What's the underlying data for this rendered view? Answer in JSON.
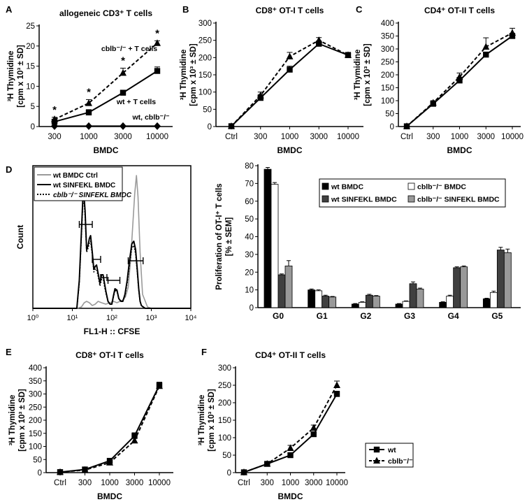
{
  "chart_data": [
    {
      "id": "A",
      "panel_label": "A",
      "type": "line",
      "title": "allogeneic CD3⁺ T cells",
      "xlabel": "BMDC",
      "ylabel": [
        "³H Thymidine",
        "[cpm x 10³ ± SD]"
      ],
      "categories": [
        "300",
        "1000",
        "3000",
        "10000"
      ],
      "ylim": [
        0,
        25
      ],
      "yticks": [
        0,
        5,
        10,
        15,
        20,
        25
      ],
      "series": [
        {
          "name": "cblb⁻/⁻ + T cells",
          "style": "dashed",
          "marker": "triangle",
          "values": [
            1.8,
            5.8,
            13.3,
            20.7
          ],
          "err": [
            0.5,
            0.9,
            1.2,
            0.6
          ]
        },
        {
          "name": "wt + T cells",
          "style": "solid",
          "marker": "square",
          "values": [
            1.2,
            3.5,
            8.4,
            13.8
          ],
          "err": [
            0.4,
            0.7,
            0.5,
            1.0
          ]
        },
        {
          "name": "wt, cblb⁻/⁻",
          "style": "solid",
          "marker": "diamond",
          "values": [
            0.1,
            0.1,
            0.1,
            0.1
          ],
          "err": [
            0,
            0,
            0,
            0
          ]
        }
      ],
      "annotations": [
        "*",
        "*",
        "*",
        "*"
      ]
    },
    {
      "id": "B",
      "panel_label": "B",
      "type": "line",
      "title": "CD8⁺ OT-I T cells",
      "xlabel": "BMDC",
      "ylabel": [
        "³H Thymidine",
        "[cpm x 10³ ± SD]"
      ],
      "categories": [
        "Ctrl",
        "300",
        "1000",
        "3000",
        "10000"
      ],
      "ylim": [
        0,
        300
      ],
      "yticks": [
        0,
        50,
        100,
        150,
        200,
        250,
        300
      ],
      "series": [
        {
          "name": "wt",
          "style": "solid",
          "marker": "square",
          "values": [
            1,
            83,
            165,
            240,
            207
          ],
          "err": [
            0,
            10,
            10,
            8,
            8
          ]
        },
        {
          "name": "cblb⁻/⁻",
          "style": "dashed",
          "marker": "triangle",
          "values": [
            1,
            90,
            203,
            250,
            207
          ],
          "err": [
            0,
            10,
            12,
            8,
            8
          ]
        }
      ]
    },
    {
      "id": "C",
      "panel_label": "C",
      "type": "line",
      "title": "CD4⁺ OT-II T cells",
      "xlabel": "BMDC",
      "ylabel": [
        "³H Thymidine",
        "[cpm x 10³ ± SD]"
      ],
      "categories": [
        "Ctrl",
        "300",
        "1000",
        "3000",
        "10000"
      ],
      "ylim": [
        0,
        400
      ],
      "yticks": [
        0,
        50,
        100,
        150,
        200,
        250,
        300,
        350,
        400
      ],
      "series": [
        {
          "name": "wt",
          "style": "solid",
          "marker": "square",
          "values": [
            1,
            88,
            178,
            278,
            350
          ],
          "err": [
            0,
            8,
            12,
            10,
            10
          ]
        },
        {
          "name": "cblb⁻/⁻",
          "style": "dashed",
          "marker": "triangle",
          "values": [
            1,
            92,
            192,
            308,
            362
          ],
          "err": [
            0,
            8,
            15,
            35,
            18
          ]
        }
      ]
    },
    {
      "id": "Dhist",
      "panel_label": "D",
      "type": "line",
      "title": "",
      "xlabel": "FL1-H :: CFSE",
      "ylabel": "Count",
      "xscale": "log",
      "xlim": [
        1,
        10000
      ],
      "xtick_values": [
        1,
        10,
        100,
        1000,
        10000
      ],
      "xticks": [
        "10⁰",
        "10¹",
        "10²",
        "10³",
        "10⁴"
      ],
      "ylim": [
        0,
        100
      ],
      "legend": [
        "wt BMDC Ctrl",
        "wt SINFEKL BMDC",
        "cblb⁻/⁻ SINFEKL BMDC"
      ],
      "series": [
        {
          "name": "wt BMDC Ctrl",
          "style": "gray",
          "x": [
            1,
            13,
            17,
            20,
            23,
            27,
            32,
            38,
            45,
            55,
            70,
            90,
            110,
            135,
            160,
            190,
            220,
            260,
            300,
            340,
            380,
            420,
            460,
            520,
            600,
            800,
            1000,
            10000
          ],
          "y": [
            0,
            0,
            1,
            4,
            5,
            4,
            2,
            3,
            5,
            4,
            3,
            4,
            5,
            4,
            5,
            6,
            8,
            15,
            35,
            60,
            82,
            95,
            80,
            40,
            10,
            1,
            0,
            0
          ]
        },
        {
          "name": "wt SINFEKL BMDC",
          "style": "solid",
          "x": [
            1,
            13,
            15,
            17,
            19,
            21,
            23,
            25,
            27,
            29,
            32,
            35,
            38,
            41,
            45,
            50,
            55,
            60,
            66,
            72,
            80,
            90,
            100,
            110,
            120,
            135,
            150,
            170,
            190,
            215,
            245,
            280,
            320,
            360,
            400,
            440,
            480,
            520,
            560,
            620,
            700,
            900,
            1200,
            10000
          ],
          "y": [
            0,
            0,
            20,
            55,
            87,
            70,
            42,
            45,
            50,
            52,
            40,
            28,
            30,
            31,
            25,
            18,
            24,
            24,
            17,
            11,
            5,
            3,
            3,
            9,
            14,
            13,
            7,
            5,
            5,
            10,
            20,
            34,
            46,
            48,
            42,
            28,
            14,
            5,
            2,
            1,
            0,
            0,
            0,
            0
          ]
        },
        {
          "name": "cblb⁻/⁻ SINFEKL BMDC",
          "style": "dotted",
          "x": [
            1,
            13,
            15,
            17,
            19,
            21,
            23,
            25,
            27,
            29,
            32,
            35,
            38,
            41,
            45,
            50,
            55,
            60,
            66,
            72,
            80,
            90,
            100,
            110,
            120,
            135,
            150,
            170,
            190,
            215,
            245,
            280,
            320,
            360,
            400,
            440,
            480,
            520,
            560,
            620,
            700,
            900,
            1200,
            10000
          ],
          "y": [
            0,
            0,
            18,
            52,
            83,
            66,
            40,
            43,
            47,
            48,
            38,
            26,
            28,
            28,
            23,
            16,
            21,
            22,
            15,
            10,
            5,
            3,
            3,
            8,
            13,
            12,
            7,
            5,
            5,
            9,
            18,
            31,
            43,
            45,
            39,
            26,
            13,
            5,
            2,
            1,
            0,
            0,
            0,
            0
          ]
        }
      ],
      "gates": [
        {
          "lo": 15,
          "hi": 32,
          "level": 60
        },
        {
          "lo": 32,
          "hi": 52,
          "level": 35
        },
        {
          "lo": 52,
          "hi": 75,
          "level": 22
        },
        {
          "lo": 80,
          "hi": 160,
          "level": 20
        },
        {
          "lo": 260,
          "hi": 620,
          "level": 34
        }
      ]
    },
    {
      "id": "Dbar",
      "panel_label": "",
      "type": "bar",
      "title": "",
      "xlabel": "",
      "ylabel": [
        "Proliferation of OT-I⁺ T cells",
        "[% ± SEM]"
      ],
      "categories": [
        "G0",
        "G1",
        "G2",
        "G3",
        "G4",
        "G5"
      ],
      "ylim": [
        0,
        80
      ],
      "yticks": [
        0,
        10,
        20,
        30,
        40,
        50,
        60,
        70,
        80
      ],
      "series": [
        {
          "name": "wt BMDC",
          "color": "#000000",
          "values": [
            78,
            10,
            2,
            2,
            3,
            5
          ],
          "err": [
            1,
            0.5,
            0.3,
            0.3,
            0.3,
            0.3
          ]
        },
        {
          "name": "cblb⁻/⁻ BMDC",
          "color": "#ffffff",
          "values": [
            69.5,
            9.5,
            3,
            3.5,
            6.5,
            8.5
          ],
          "err": [
            1,
            0.5,
            0.3,
            0.3,
            0.5,
            0.8
          ]
        },
        {
          "name": "wt SINFEKL BMDC",
          "color": "#404040",
          "values": [
            18.5,
            6.5,
            7,
            13.5,
            22.5,
            32.5
          ],
          "err": [
            0.5,
            0.5,
            0.5,
            1,
            0.5,
            1.5
          ]
        },
        {
          "name": "cblb⁻/⁻ SINFEKL BMDC",
          "color": "#999999",
          "values": [
            23.5,
            6,
            6.5,
            10.5,
            23,
            31
          ],
          "err": [
            3,
            0.3,
            0.3,
            0.5,
            0.5,
            2
          ]
        }
      ]
    },
    {
      "id": "E",
      "panel_label": "E",
      "type": "line",
      "title": "CD8⁺ OT-I T cells",
      "xlabel": "BMDC",
      "ylabel": [
        "³H Thymidine",
        "[cpm x 10³ ± SD]"
      ],
      "categories": [
        "Ctrl",
        "300",
        "1000",
        "3000",
        "10000"
      ],
      "ylim": [
        0,
        400
      ],
      "yticks": [
        0,
        50,
        100,
        150,
        200,
        250,
        300,
        350,
        400
      ],
      "series": [
        {
          "name": "wt",
          "style": "solid",
          "marker": "square",
          "values": [
            2,
            12,
            45,
            140,
            333
          ],
          "err": [
            0,
            4,
            5,
            12,
            12
          ]
        },
        {
          "name": "cblb⁻/⁻",
          "style": "dashed",
          "marker": "triangle",
          "values": [
            2,
            10,
            38,
            122,
            330
          ],
          "err": [
            0,
            4,
            5,
            12,
            12
          ]
        }
      ]
    },
    {
      "id": "F",
      "panel_label": "F",
      "type": "line",
      "title": "CD4⁺ OT-II T cells",
      "xlabel": "BMDC",
      "ylabel": [
        "³H Thymidine",
        "[cpm x 10³ ± SD]"
      ],
      "categories": [
        "Ctrl",
        "300",
        "1000",
        "3000",
        "10000"
      ],
      "ylim": [
        0,
        300
      ],
      "yticks": [
        0,
        50,
        100,
        150,
        200,
        250,
        300
      ],
      "series": [
        {
          "name": "wt",
          "style": "solid",
          "marker": "square",
          "values": [
            1,
            25,
            50,
            110,
            225
          ],
          "err": [
            0,
            3,
            5,
            5,
            8
          ]
        },
        {
          "name": "cblb⁻/⁻",
          "style": "dashed",
          "marker": "triangle",
          "values": [
            1,
            25,
            70,
            128,
            250
          ],
          "err": [
            0,
            3,
            8,
            8,
            12
          ]
        }
      ]
    }
  ]
}
